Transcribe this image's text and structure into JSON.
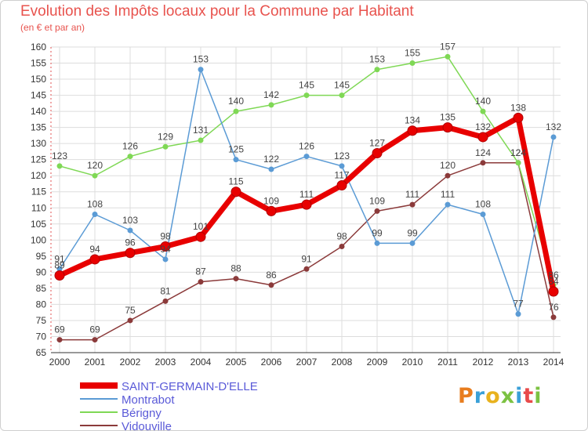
{
  "header": {
    "title": "Evolution des Impôts locaux pour la Commune par Habitant",
    "subtitle": "(en € et par an)"
  },
  "logo": {
    "text": "Proxiti",
    "colors": [
      "#e87d1e",
      "#3aa0d8",
      "#e8b21e",
      "#7cc242",
      "#3aa0d8",
      "#e84a4a",
      "#7cc242"
    ]
  },
  "chart_data": {
    "type": "line",
    "title": "Evolution des Impôts locaux pour la Commune par Habitant",
    "subtitle": "(en € et par an)",
    "xlabel": "",
    "ylabel": "",
    "ylim": [
      65,
      160
    ],
    "ytick_step": 5,
    "grid": true,
    "legend": "bottom-left",
    "categories": [
      "2000",
      "2001",
      "2002",
      "2003",
      "2004",
      "2005",
      "2006",
      "2007",
      "2008",
      "2009",
      "2010",
      "2011",
      "2012",
      "2013",
      "2014"
    ],
    "series": [
      {
        "name": "SAINT-GERMAIN-D'ELLE",
        "color": "#e80000",
        "values": [
          89,
          94,
          96,
          98,
          101,
          115,
          109,
          111,
          117,
          127,
          134,
          135,
          132,
          138,
          84
        ],
        "labels": [
          "89",
          "94",
          "96",
          "98",
          "101",
          "115",
          "109",
          "111",
          "117",
          "127",
          "134",
          "135",
          "132",
          "138",
          "84"
        ]
      },
      {
        "name": "Montrabot",
        "color": "#5b9bd5",
        "values": [
          91,
          108,
          103,
          94,
          153,
          125,
          122,
          126,
          123,
          99,
          99,
          111,
          108,
          77,
          132
        ],
        "labels": [
          "91",
          "108",
          "103",
          "94",
          "153",
          "125",
          "122",
          "126",
          "123",
          "99",
          "99",
          "111",
          "108",
          "77",
          "132"
        ]
      },
      {
        "name": "Bérigny",
        "color": "#7fd855",
        "values": [
          123,
          120,
          126,
          129,
          131,
          140,
          142,
          145,
          145,
          153,
          155,
          157,
          140,
          124,
          86
        ],
        "labels": [
          "123",
          "120",
          "126",
          "129",
          "131",
          "140",
          "142",
          "145",
          "145",
          "153",
          "155",
          "157",
          "140",
          "124",
          "86"
        ]
      },
      {
        "name": "Vidouville",
        "color": "#8b3a3a",
        "values": [
          69,
          69,
          75,
          81,
          87,
          88,
          86,
          91,
          98,
          109,
          111,
          120,
          124,
          124,
          76
        ],
        "labels": [
          "69",
          "69",
          "75",
          "81",
          "87",
          "88",
          "86",
          "91",
          "98",
          "109",
          "111",
          "120",
          "124",
          "124",
          "76"
        ]
      }
    ]
  }
}
